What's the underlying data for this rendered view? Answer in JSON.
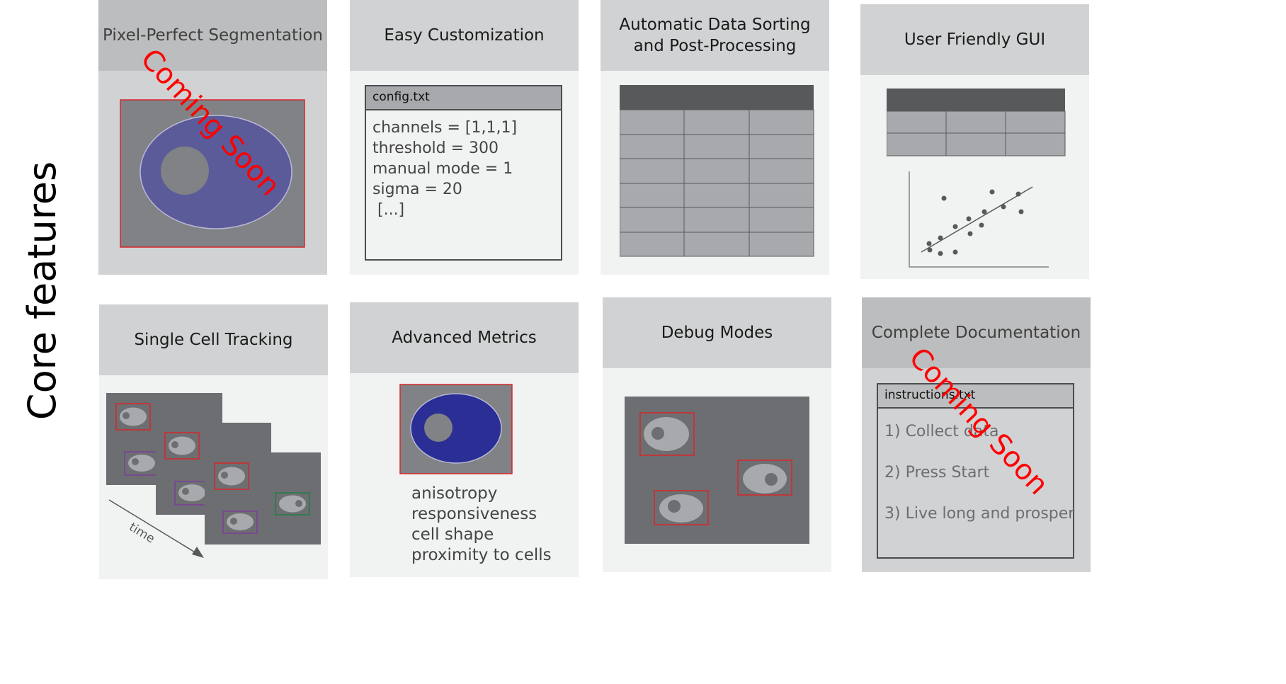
{
  "side_title": "Core features",
  "coming_soon": "Coming Soon",
  "cards": [
    {
      "title": "Pixel-Perfect Segmentation"
    },
    {
      "title": "Easy Customization"
    },
    {
      "title": "Automatic Data Sorting\nand Post-Processing"
    },
    {
      "title": "User Friendly GUI"
    },
    {
      "title": "Single Cell Tracking"
    },
    {
      "title": "Advanced Metrics"
    },
    {
      "title": "Debug Modes"
    },
    {
      "title": "Complete Documentation"
    }
  ],
  "config": {
    "filename": "config.txt",
    "lines": [
      "channels = [1,1,1]",
      "threshold = 300",
      "manual mode = 1",
      "sigma = 20",
      " [...]"
    ]
  },
  "metrics": [
    "anisotropy",
    "responsiveness",
    "cell shape",
    "proximity to cells"
  ],
  "tracking": {
    "time_label": "time"
  },
  "docs": {
    "filename": "instructions.txt",
    "lines": [
      "1) Collect data",
      "2) Press Start",
      "3) Live long and prosper"
    ]
  },
  "colors": {
    "card_bg": "#f1f2f2",
    "header_bg": "#d1d2d3",
    "dark_gray": "#58595b",
    "cell_gray": "#a7a9ac",
    "nucleus_blue": "#5b5b9a",
    "deep_blue": "#2b2e94",
    "box_red": "#d7262b",
    "box_purple": "#7b3f99",
    "box_green": "#1e7d46",
    "coming_red": "#ff0000"
  }
}
